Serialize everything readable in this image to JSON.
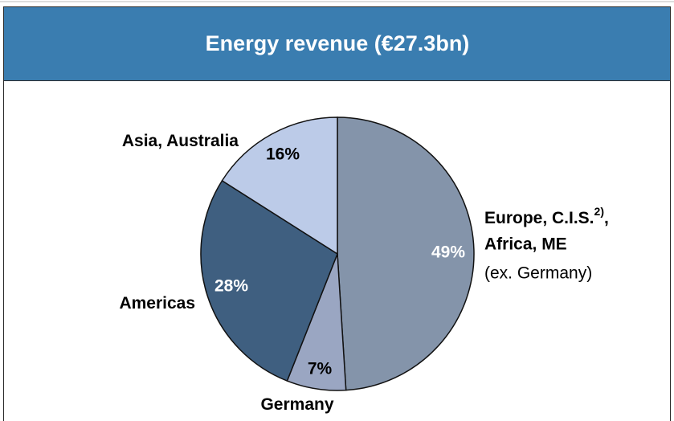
{
  "chart_data": {
    "type": "pie",
    "title": "Energy revenue (€27.3bn)",
    "categories": [
      "Europe, C.I.S.",
      "Germany",
      "Americas",
      "Asia, Australia"
    ],
    "category_details": [
      {
        "superscript": "2)",
        "suffix": ",",
        "line2": "Africa, ME",
        "note": "(ex. Germany)"
      },
      null,
      null,
      null
    ],
    "values": [
      49,
      7,
      28,
      16
    ],
    "value_labels": [
      "49%",
      "7%",
      "28%",
      "16%"
    ],
    "colors": [
      "#8494aa",
      "#9aa6c2",
      "#3f5f80",
      "#bccbe8"
    ],
    "label_colors": [
      "#ffffff",
      "#000000",
      "#ffffff",
      "#000000"
    ]
  }
}
